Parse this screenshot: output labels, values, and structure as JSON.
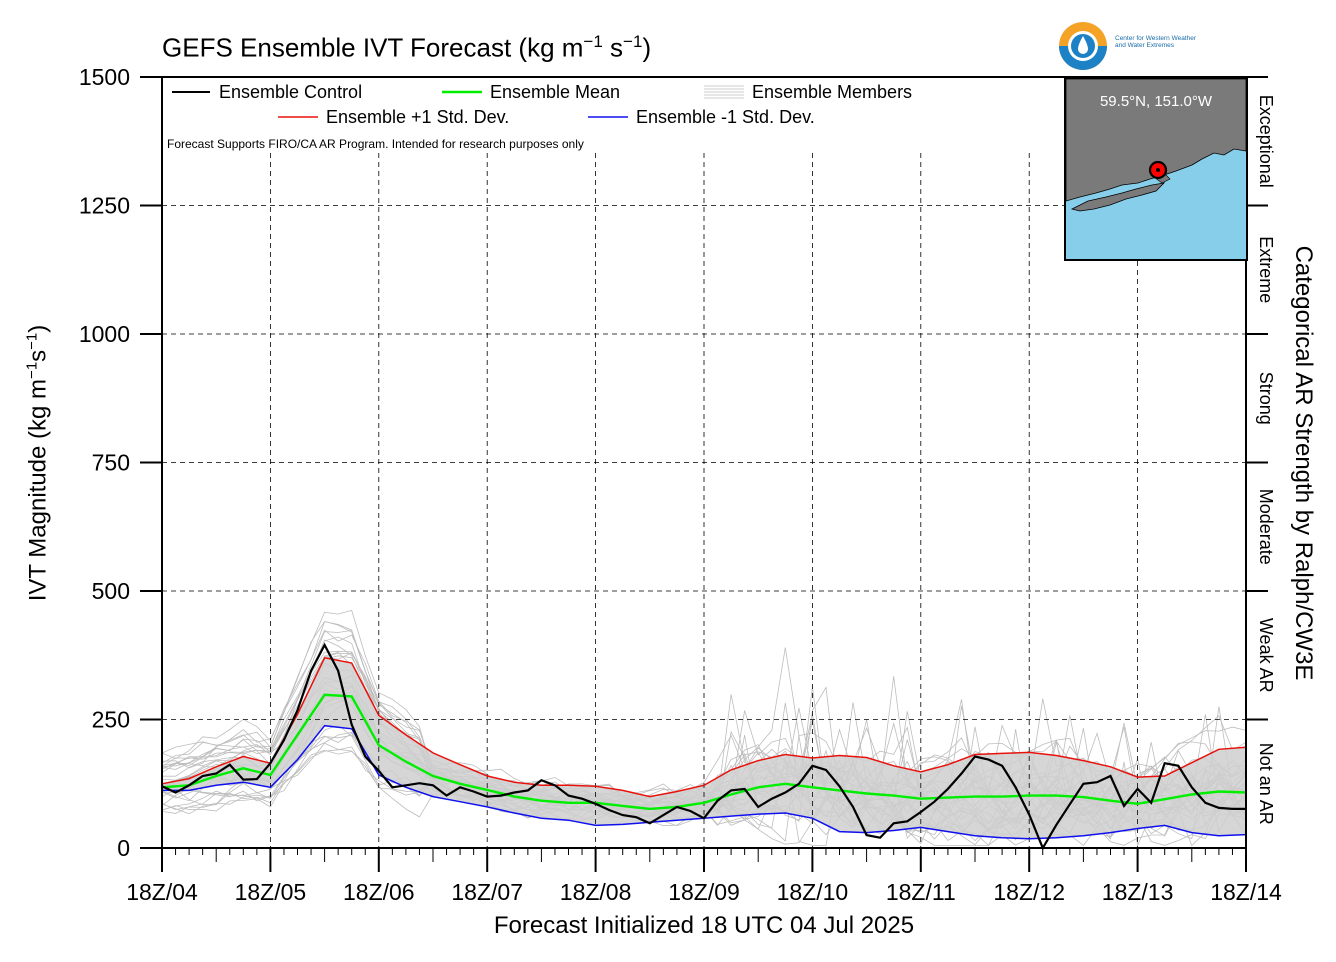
{
  "title": {
    "main": "GEFS Ensemble IVT Forecast (kg m",
    "e1": "−1",
    "mid": " s",
    "e2": "−1",
    "end": ")"
  },
  "ylabel": {
    "a": "IVT Magnitude (kg m",
    "e1": "−1",
    "b": "s",
    "e2": "−1",
    "c": ")"
  },
  "xlabel": "Forecast Initialized 18 UTC 04 Jul 2025",
  "y2label": "Categorical AR Strength by Ralph/CW3E",
  "note": "Forecast Supports FIRO/CA AR Program. Intended for research purposes only",
  "logo": {
    "line1": "Center for Western Weather",
    "line2": "and Water Extremes"
  },
  "inset": {
    "label": "59.5°N, 151.0°W"
  },
  "chart_data": {
    "type": "line",
    "x_tick_labels": [
      "18Z/04",
      "18Z/05",
      "18Z/06",
      "18Z/07",
      "18Z/08",
      "18Z/09",
      "18Z/10",
      "18Z/11",
      "18Z/12",
      "18Z/13",
      "18Z/14"
    ],
    "y_ticks": [
      0,
      250,
      500,
      750,
      1000,
      1250,
      1500
    ],
    "ylim": [
      0,
      1500
    ],
    "x_range_days": [
      0,
      10
    ],
    "grid": true,
    "legend_position": "top-left",
    "categories_right": [
      {
        "label": "Not an AR",
        "range": [
          0,
          250
        ]
      },
      {
        "label": "Weak AR",
        "range": [
          250,
          500
        ]
      },
      {
        "label": "Moderate",
        "range": [
          500,
          750
        ]
      },
      {
        "label": "Strong",
        "range": [
          750,
          1000
        ]
      },
      {
        "label": "Extreme",
        "range": [
          1000,
          1250
        ]
      },
      {
        "label": "Exceptional",
        "range": [
          1250,
          1500
        ]
      }
    ],
    "legend": [
      {
        "label": "Ensemble Control",
        "color": "#000000"
      },
      {
        "label": "Ensemble Mean",
        "color": "#00ee00"
      },
      {
        "label": "Ensemble Members",
        "color": "#bbbbbb"
      },
      {
        "label": "Ensemble +1 Std. Dev.",
        "color": "#e8120c"
      },
      {
        "label": "Ensemble -1 Std. Dev.",
        "color": "#1010ee"
      }
    ],
    "series": [
      {
        "name": "Ensemble Control",
        "color": "#000000",
        "x": [
          0,
          0.125,
          0.25,
          0.375,
          0.5,
          0.625,
          0.75,
          0.875,
          1,
          1.125,
          1.25,
          1.375,
          1.5,
          1.625,
          1.75,
          1.875,
          2,
          2.125,
          2.25,
          2.375,
          2.5,
          2.625,
          2.75,
          2.875,
          3,
          3.125,
          3.25,
          3.375,
          3.5,
          3.625,
          3.75,
          3.875,
          4,
          4.125,
          4.25,
          4.375,
          4.5,
          4.625,
          4.75,
          4.875,
          5,
          5.125,
          5.25,
          5.375,
          5.5,
          5.625,
          5.75,
          5.875,
          6,
          6.125,
          6.25,
          6.375,
          6.5,
          6.625,
          6.75,
          6.875,
          7,
          7.125,
          7.25,
          7.375,
          7.5,
          7.625,
          7.75,
          7.875,
          8,
          8.125,
          8.25,
          8.375,
          8.5,
          8.625,
          8.75,
          8.875,
          9,
          9.125,
          9.25,
          9.375,
          9.5,
          9.625,
          9.75,
          9.875,
          10
        ],
        "y": [
          120,
          108,
          122,
          140,
          145,
          162,
          133,
          134,
          165,
          210,
          268,
          345,
          395,
          345,
          240,
          178,
          150,
          118,
          122,
          126,
          122,
          102,
          118,
          110,
          100,
          102,
          108,
          112,
          132,
          122,
          102,
          96,
          86,
          74,
          64,
          60,
          48,
          64,
          80,
          72,
          58,
          92,
          112,
          115,
          80,
          96,
          108,
          125,
          160,
          152,
          120,
          80,
          25,
          20,
          48,
          52,
          70,
          90,
          115,
          145,
          178,
          172,
          160,
          118,
          65,
          0,
          45,
          85,
          125,
          128,
          140,
          82,
          115,
          88,
          165,
          160,
          118,
          88,
          78,
          76,
          76
        ]
      },
      {
        "name": "Ensemble Mean",
        "color": "#00ee00",
        "x": [
          0,
          0.25,
          0.5,
          0.75,
          1,
          1.25,
          1.5,
          1.75,
          2,
          2.25,
          2.5,
          2.75,
          3,
          3.25,
          3.5,
          3.75,
          4,
          4.25,
          4.5,
          4.75,
          5,
          5.25,
          5.5,
          5.75,
          6,
          6.25,
          6.5,
          6.75,
          7,
          7.25,
          7.5,
          7.75,
          8,
          8.25,
          8.5,
          8.75,
          9,
          9.25,
          9.5,
          9.75,
          10
        ],
        "y": [
          118,
          122,
          140,
          155,
          142,
          220,
          298,
          295,
          200,
          168,
          140,
          125,
          113,
          100,
          92,
          88,
          88,
          82,
          76,
          80,
          88,
          104,
          118,
          125,
          118,
          112,
          106,
          102,
          96,
          98,
          100,
          100,
          102,
          102,
          99,
          92,
          86,
          95,
          104,
          110,
          108
        ]
      },
      {
        "name": "Ensemble +1 Std. Dev.",
        "color": "#e8120c",
        "x": [
          0,
          0.25,
          0.5,
          0.75,
          1,
          1.25,
          1.5,
          1.75,
          2,
          2.25,
          2.5,
          2.75,
          3,
          3.25,
          3.5,
          3.75,
          4,
          4.25,
          4.5,
          4.75,
          5,
          5.25,
          5.5,
          5.75,
          6,
          6.25,
          6.5,
          6.75,
          7,
          7.25,
          7.5,
          7.75,
          8,
          8.25,
          8.5,
          8.75,
          9,
          9.25,
          9.5,
          9.75,
          10
        ],
        "y": [
          125,
          135,
          158,
          178,
          165,
          260,
          370,
          360,
          258,
          220,
          185,
          162,
          140,
          128,
          122,
          122,
          120,
          112,
          100,
          110,
          122,
          152,
          170,
          182,
          175,
          180,
          176,
          160,
          148,
          162,
          182,
          184,
          186,
          180,
          170,
          158,
          138,
          140,
          166,
          192,
          196
        ]
      },
      {
        "name": "Ensemble -1 Std. Dev.",
        "color": "#1010ee",
        "x": [
          0,
          0.25,
          0.5,
          0.75,
          1,
          1.25,
          1.5,
          1.75,
          2,
          2.25,
          2.5,
          2.75,
          3,
          3.25,
          3.5,
          3.75,
          4,
          4.25,
          4.5,
          4.75,
          5,
          5.25,
          5.5,
          5.75,
          6,
          6.25,
          6.5,
          6.75,
          7,
          7.25,
          7.5,
          7.75,
          8,
          8.25,
          8.5,
          8.75,
          9,
          9.25,
          9.5,
          9.75,
          10
        ],
        "y": [
          112,
          112,
          122,
          128,
          118,
          172,
          238,
          232,
          142,
          118,
          100,
          90,
          80,
          68,
          58,
          54,
          44,
          46,
          50,
          54,
          58,
          62,
          66,
          68,
          58,
          32,
          30,
          34,
          40,
          32,
          24,
          20,
          18,
          20,
          24,
          30,
          38,
          44,
          30,
          24,
          26
        ]
      }
    ]
  }
}
